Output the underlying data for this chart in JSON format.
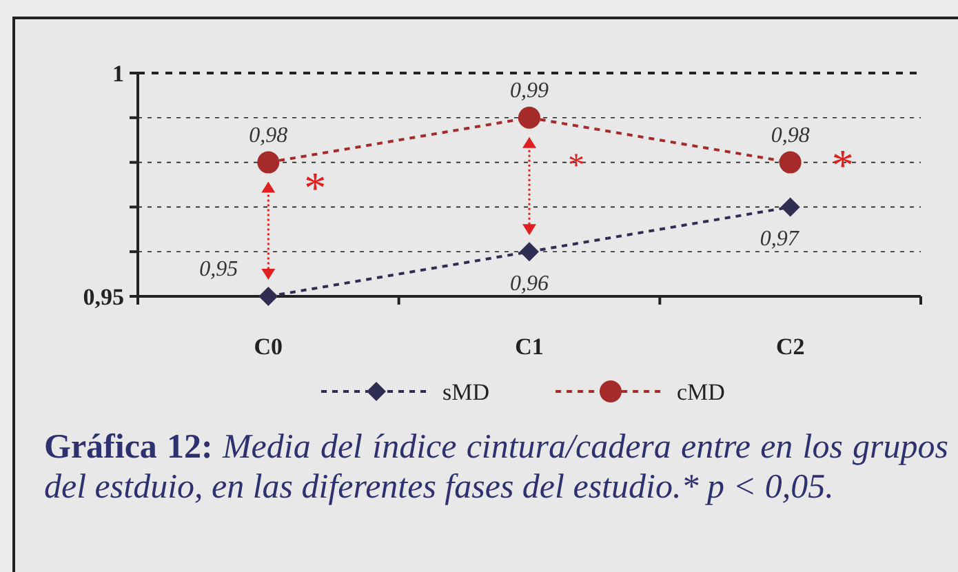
{
  "chart_data": {
    "type": "line",
    "title": "Gráfica 12:",
    "subtitle": "Media del índice cintura/cadera entre en los grupos del estduio, en las diferentes fases del estudio.* p < 0,05.",
    "categories": [
      "C0",
      "C1",
      "C2"
    ],
    "series": [
      {
        "name": "sMD",
        "color": "#2e2e52",
        "marker": "diamond",
        "values": [
          0.95,
          0.96,
          0.97
        ],
        "value_labels": [
          "0,95",
          "0,96",
          "0,97"
        ]
      },
      {
        "name": "cMD",
        "color": "#a52a2a",
        "marker": "circle",
        "values": [
          0.98,
          0.99,
          0.98
        ],
        "value_labels": [
          "0,98",
          "0,99",
          "0,98"
        ]
      }
    ],
    "ylim": [
      0.95,
      1
    ],
    "yticks": [
      {
        "value": 0.95,
        "label": "0,95"
      },
      {
        "value": 0.96,
        "label": null
      },
      {
        "value": 0.97,
        "label": null
      },
      {
        "value": 0.98,
        "label": null
      },
      {
        "value": 0.99,
        "label": null
      },
      {
        "value": 1,
        "label": "1"
      }
    ],
    "grid": "y",
    "legend": "bottom",
    "line_style": "dashed",
    "annotations": [
      "*",
      "*",
      "*"
    ]
  }
}
